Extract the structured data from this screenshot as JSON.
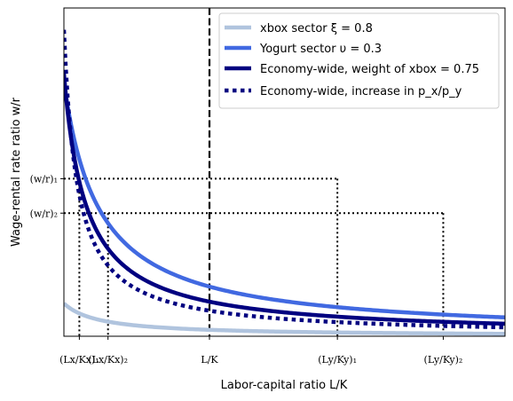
{
  "chart_data": {
    "type": "line",
    "xlabel": "Labor-capital ratio L/K",
    "ylabel": "Wage-rental rate ratio w/r",
    "xlim": [
      0,
      10
    ],
    "ylim": [
      0,
      10
    ],
    "grid": false,
    "legend_placement": "top-right",
    "legend": [
      {
        "label": "xbox sector ξ = 0.8",
        "color": "#b0c4de",
        "style": "solid"
      },
      {
        "label": "Yogurt sector υ = 0.3",
        "color": "#4169e1",
        "style": "solid"
      },
      {
        "label": "Economy-wide, weight of xbox = 0.75",
        "color": "#000080",
        "style": "solid"
      },
      {
        "label": "Economy-wide, increase in p_x/p_y",
        "color": "#000080",
        "style": "dotted"
      }
    ],
    "series": [
      {
        "key": "xbox",
        "color": "#b0c4de",
        "dash": "solid",
        "k": 0.8,
        "c": 0.8
      },
      {
        "key": "yogurt",
        "color": "#4169e1",
        "dash": "solid",
        "k": 6.2,
        "c": 0.8
      },
      {
        "key": "economy",
        "color": "#000080",
        "dash": "solid",
        "k": 4.0,
        "c": 0.5
      },
      {
        "key": "economy_increase",
        "color": "#000080",
        "dash": "dotted",
        "k": 2.8,
        "c": 0.3
      }
    ],
    "x_ticks": [
      {
        "key": "Lx_Kx_1",
        "value": 0.35,
        "label": "(Lx/Kx)₁"
      },
      {
        "key": "Lx_Kx_2",
        "value": 1.0,
        "label": "(Lx/Kx)₂"
      },
      {
        "key": "L_K",
        "value": 3.3,
        "label": "L/K"
      },
      {
        "key": "Ly_Ky_1",
        "value": 6.2,
        "label": "(Ly/Ky)₁"
      },
      {
        "key": "Ly_Ky_2",
        "value": 8.6,
        "label": "(Ly/Ky)₂"
      }
    ],
    "y_ticks": [
      {
        "key": "w_r_1",
        "value": 4.8,
        "label": "(w/r)₁"
      },
      {
        "key": "w_r_2",
        "value": 3.75,
        "label": "(w/r)₂"
      }
    ],
    "reference_lines": {
      "dashed_vertical_x": 3.3,
      "dotted_horizontal": [
        {
          "y": 4.8,
          "x_to": 6.2
        },
        {
          "y": 3.75,
          "x_to": 8.6
        }
      ],
      "dotted_vertical": [
        {
          "x": 0.35,
          "y_to": 4.8
        },
        {
          "x": 1.0,
          "y_to": 3.75
        },
        {
          "x": 6.2,
          "y_to": 4.8
        },
        {
          "x": 8.6,
          "y_to": 3.75
        }
      ]
    }
  }
}
